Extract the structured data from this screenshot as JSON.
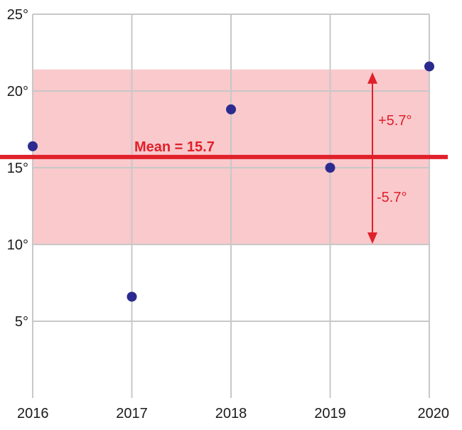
{
  "chart_data": {
    "type": "scatter",
    "x": [
      "2016",
      "2017",
      "2018",
      "2019",
      "2020"
    ],
    "y": [
      16.4,
      6.6,
      18.8,
      15.0,
      21.6
    ],
    "ylim": [
      0,
      25
    ],
    "yticks": [
      5,
      10,
      15,
      20,
      25
    ],
    "ytick_labels": [
      "5°",
      "10°",
      "15°",
      "20°",
      "25°"
    ],
    "grid": true,
    "mean": 15.7,
    "mean_label": "Mean = 15.7",
    "band": {
      "low": 10.0,
      "high": 21.4
    },
    "band_upper_label": "+5.7°",
    "band_lower_label": "-5.7°",
    "colors": {
      "point": "#2b2b8f",
      "mean_line": "#e0202a",
      "band": "#f9c9cc",
      "grid": "#c8c8c8",
      "arrow": "#e0202a"
    }
  }
}
